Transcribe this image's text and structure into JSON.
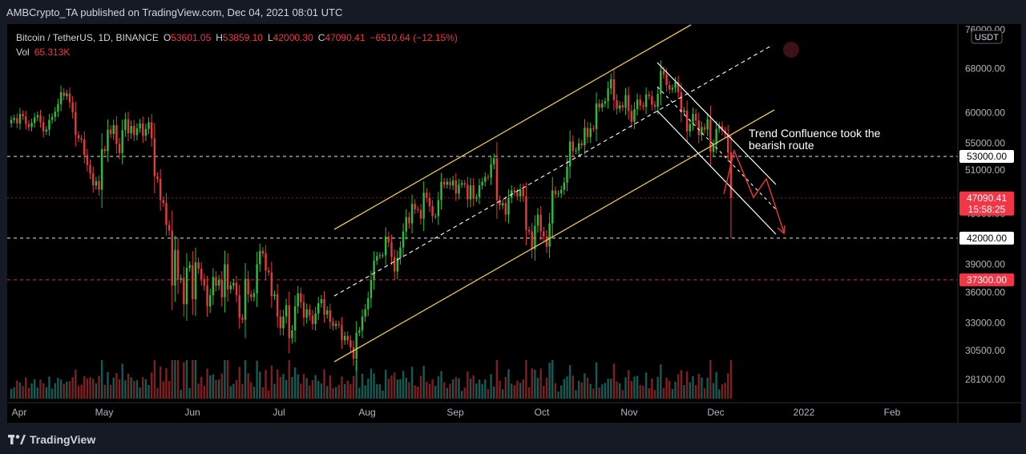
{
  "header": {
    "published": "AMBCrypto_TA published on TradingView.com, Dec 04, 2021 08:01 UTC"
  },
  "legend": {
    "symbol": "Bitcoin / TetherUS, 1D, BINANCE",
    "o_label": "O",
    "o_value": "53601.05",
    "h_label": "H",
    "h_value": "53859.10",
    "l_label": "L",
    "l_value": "42000.30",
    "c_label": "C",
    "c_value": "47090.41",
    "change": "−6510.64 (−12.15%)",
    "vol_label": "Vol",
    "vol_value": "65.313K"
  },
  "footer": {
    "brand": "TradingView",
    "logo_icon": "tradingview-logo-icon"
  },
  "colors": {
    "background": "#000000",
    "frame": "#161a25",
    "up": "#26a69a",
    "up_candle": "#2ebd3a",
    "down": "#e8393a",
    "channel": "#e5c54b",
    "dashed": "#ffffff",
    "price_red": "#f23645"
  },
  "chart_data": {
    "type": "candlestick",
    "title": "Bitcoin / TetherUS, 1D, BINANCE",
    "y_axis": {
      "currency": "USDT",
      "scale": "log",
      "ticks": [
        76000,
        68000,
        60000,
        55000,
        51000,
        45000,
        42000,
        39000,
        36000,
        33000,
        30500,
        28100
      ],
      "tick_labels": [
        "76000.00",
        "68000.00",
        "60000.00",
        "55000.00",
        "51000.00",
        "45000.00",
        "42000.00",
        "39000.00",
        "36000.00",
        "33000.00",
        "30500.00",
        "28100.00"
      ]
    },
    "x_axis": {
      "labels": [
        "Apr",
        "May",
        "Jun",
        "Jul",
        "Aug",
        "Sep",
        "Oct",
        "Nov",
        "Dec",
        "2022",
        "Feb"
      ]
    },
    "price_tags": [
      {
        "value": 53000,
        "label": "53000.00",
        "style": "white"
      },
      {
        "value": 47090.41,
        "label": "47090.41",
        "sublabel": "15:58:25",
        "style": "red"
      },
      {
        "value": 42000,
        "label": "42000.00",
        "style": "white"
      },
      {
        "value": 37300,
        "label": "37300.00",
        "style": "red"
      }
    ],
    "horizontal_lines": [
      {
        "value": 53000,
        "style": "dashed",
        "color": "#ffffff"
      },
      {
        "value": 47090.41,
        "style": "dotted",
        "color": "#f23645"
      },
      {
        "value": 42000,
        "style": "dashed",
        "color": "#ffffff"
      },
      {
        "value": 37300,
        "style": "dashed",
        "color": "#f23645"
      }
    ],
    "daily_close": [
      58800,
      59100,
      58200,
      59800,
      59400,
      58100,
      57600,
      58300,
      59200,
      59600,
      58400,
      56900,
      57200,
      58800,
      59300,
      60200,
      61500,
      63600,
      62900,
      63400,
      61800,
      60100,
      56300,
      55800,
      55600,
      53200,
      51700,
      50500,
      48800,
      49400,
      48200,
      54100,
      53800,
      57200,
      56500,
      57900,
      54900,
      53500,
      57100,
      58900,
      56600,
      57800,
      56300,
      57400,
      58200,
      56200,
      57300,
      58400,
      55800,
      50100,
      49700,
      46800,
      46400,
      43600,
      42900,
      36700,
      40600,
      37300,
      37500,
      34800,
      38600,
      38900,
      35300,
      39200,
      38500,
      37400,
      36700,
      34600,
      35700,
      37600,
      36700,
      37300,
      35500,
      39000,
      36300,
      36700,
      37000,
      35700,
      33500,
      33300,
      37400,
      35800,
      35500,
      35900,
      39000,
      40500,
      40200,
      38300,
      38100,
      35600,
      35800,
      33600,
      32500,
      33600,
      34700,
      31600,
      32300,
      34600,
      35900,
      35000,
      33500,
      34300,
      33700,
      32900,
      33900,
      34900,
      35300,
      33800,
      34200,
      33100,
      32700,
      32900,
      32800,
      31400,
      31800,
      31400,
      30800,
      29800,
      32100,
      32300,
      33600,
      34300,
      35400,
      37300,
      39400,
      39900,
      40000,
      40000,
      42200,
      41500,
      39800,
      38200,
      39700,
      40900,
      42800,
      44600,
      43800,
      46300,
      45600,
      45500,
      44400,
      47800,
      47100,
      46000,
      44700,
      44700,
      46800,
      49300,
      48900,
      49300,
      48800,
      49500,
      47700,
      48900,
      49100,
      48900,
      46900,
      48800,
      47000,
      47200,
      48800,
      49300,
      50000,
      49900,
      51800,
      52700,
      46800,
      46100,
      46400,
      44900,
      47100,
      48100,
      47800,
      47300,
      48300,
      47300,
      43000,
      42800,
      40700,
      43500,
      44900,
      42800,
      42200,
      41000,
      43800,
      48100,
      47600,
      47700,
      48200,
      49200,
      51500,
      55300,
      53800,
      53900,
      55000,
      54700,
      57500,
      56000,
      57400,
      57300,
      61600,
      60900,
      61600,
      62000,
      64300,
      66000,
      62200,
      60700,
      61300,
      60900,
      63100,
      60300,
      58500,
      60600,
      62300,
      61300,
      61000,
      63200,
      62900,
      61400,
      61000,
      63300,
      67600,
      66900,
      64900,
      64100,
      64400,
      65500,
      63600,
      60100,
      60400,
      56900,
      58100,
      59800,
      58700,
      56300,
      57600,
      57200,
      58900,
      53700,
      54800,
      57300,
      57800,
      57000,
      56500,
      53600,
      47090
    ]
  },
  "annotation": {
    "line1": "Trend Confluence took the",
    "line2": "bearish route"
  }
}
